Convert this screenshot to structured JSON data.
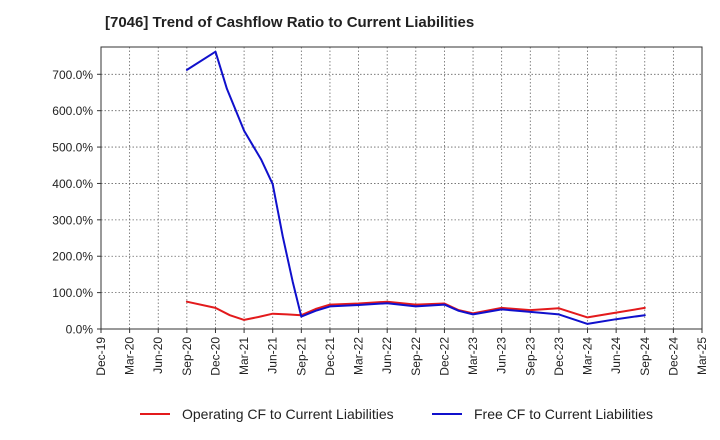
{
  "title": "[7046]  Trend of Cashflow Ratio to Current Liabilities",
  "chart_data": {
    "type": "line",
    "categories": [
      "Dec-19",
      "Mar-20",
      "Jun-20",
      "Sep-20",
      "Dec-20",
      "Mar-21",
      "Jun-21",
      "Sep-21",
      "Dec-21",
      "Mar-22",
      "Jun-22",
      "Sep-22",
      "Dec-22",
      "Mar-23",
      "Jun-23",
      "Sep-23",
      "Dec-23",
      "Mar-24",
      "Jun-24",
      "Sep-24",
      "Dec-24",
      "Mar-25"
    ],
    "y_ticks": [
      "0.0%",
      "100.0%",
      "200.0%",
      "300.0%",
      "400.0%",
      "500.0%",
      "600.0%",
      "700.0%"
    ],
    "ylim": [
      0,
      775
    ],
    "grid": true,
    "legend_position": "bottom",
    "series": [
      {
        "name": "Operating CF to Current Liabilities",
        "color": "#e31a1c",
        "points": [
          [
            3,
            75
          ],
          [
            4,
            58
          ],
          [
            4.5,
            38
          ],
          [
            5,
            25
          ],
          [
            5.5,
            33
          ],
          [
            6,
            42
          ],
          [
            6.5,
            40
          ],
          [
            7,
            38
          ],
          [
            7.5,
            55
          ],
          [
            8,
            67
          ],
          [
            9,
            70
          ],
          [
            10,
            75
          ],
          [
            11,
            67
          ],
          [
            12,
            70
          ],
          [
            12.5,
            52
          ],
          [
            13,
            43
          ],
          [
            14,
            58
          ],
          [
            15,
            52
          ],
          [
            16,
            57
          ],
          [
            17,
            32
          ],
          [
            18,
            45
          ],
          [
            19,
            58
          ]
        ]
      },
      {
        "name": "Free CF to Current Liabilities",
        "color": "#1010cc",
        "points": [
          [
            3,
            712
          ],
          [
            4,
            762
          ],
          [
            4.4,
            660
          ],
          [
            5,
            545
          ],
          [
            5.6,
            465
          ],
          [
            6,
            398
          ],
          [
            6.35,
            255
          ],
          [
            6.7,
            130
          ],
          [
            7,
            34
          ],
          [
            7.5,
            50
          ],
          [
            8,
            62
          ],
          [
            9,
            66
          ],
          [
            10,
            71
          ],
          [
            11,
            62
          ],
          [
            12,
            67
          ],
          [
            12.5,
            50
          ],
          [
            13,
            40
          ],
          [
            14,
            54
          ],
          [
            15,
            47
          ],
          [
            16,
            40
          ],
          [
            17,
            14
          ],
          [
            18,
            27
          ],
          [
            19,
            38
          ]
        ]
      }
    ]
  }
}
